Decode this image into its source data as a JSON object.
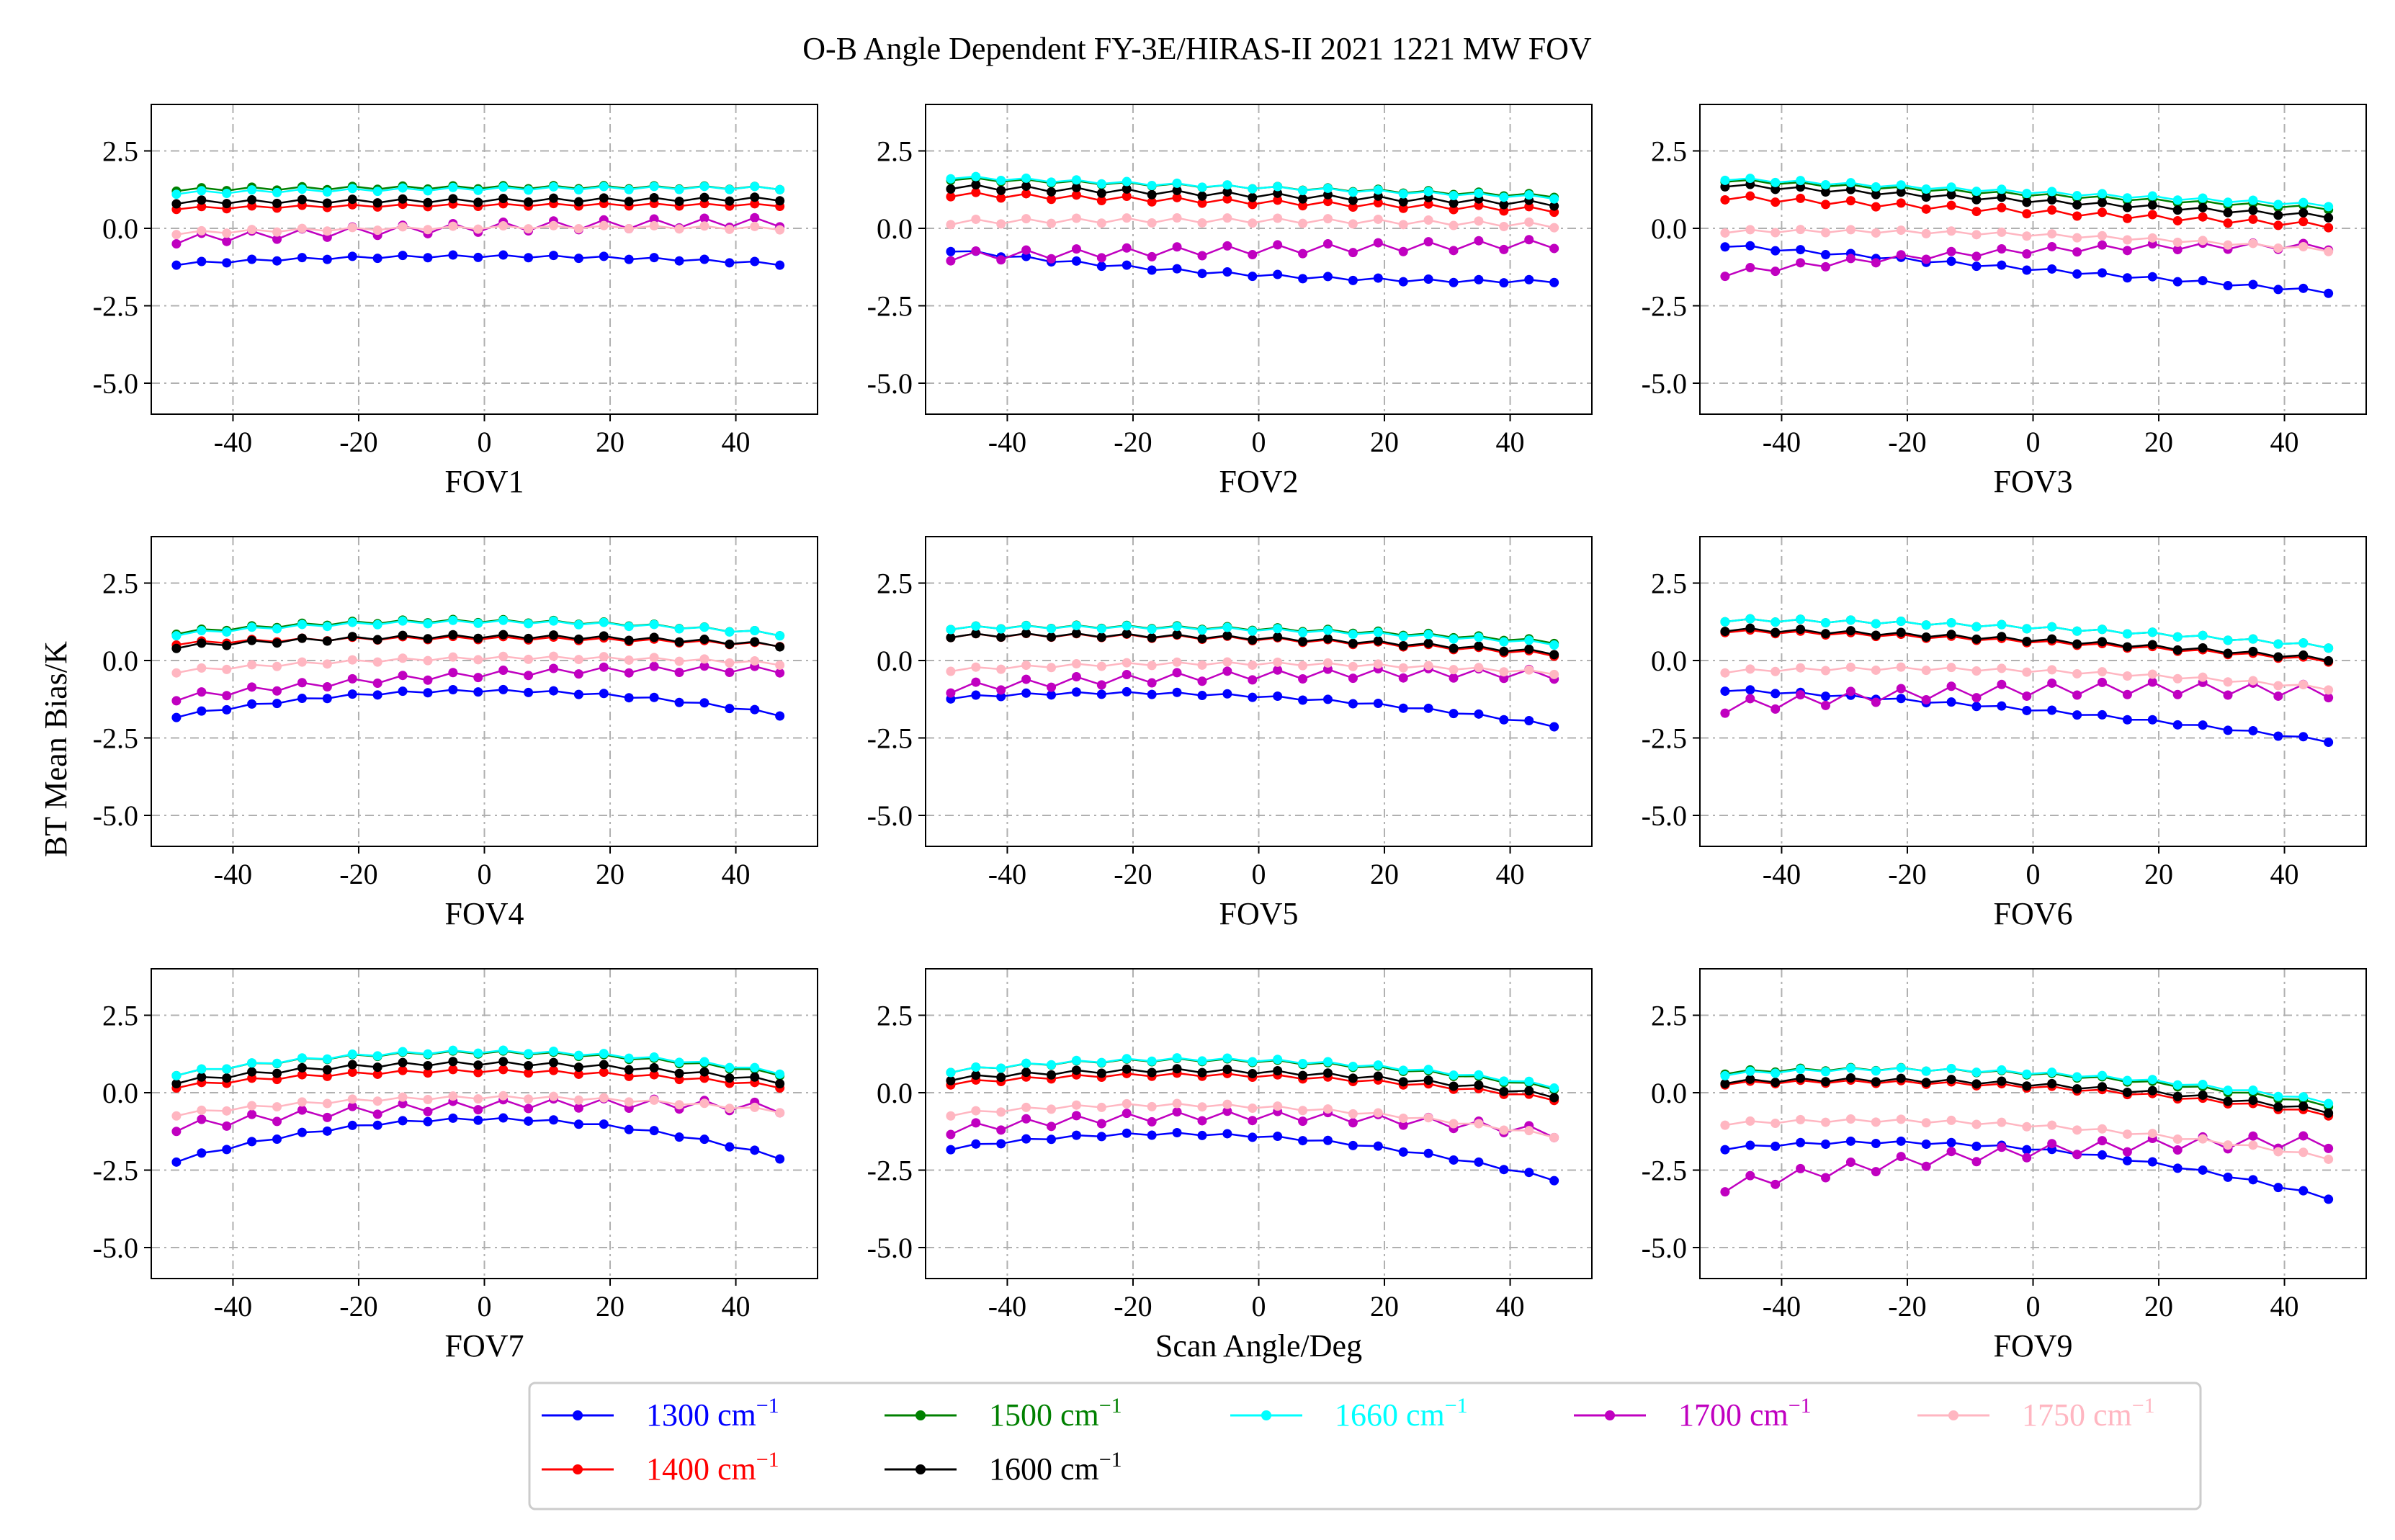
{
  "title": "O-B Angle Dependent FY-3E/HIRAS-II 2021 1221 MW FOV",
  "ylabel": "BT Mean Bias/K",
  "colors": {
    "1300": "#0000ff",
    "1400": "#ff0000",
    "1500": "#008000",
    "1600": "#000000",
    "1660": "#00ffff",
    "1700": "#c000c0",
    "1750": "#ffb6c1"
  },
  "legend": [
    {
      "key": "1300",
      "label": "1300 cm",
      "sup": "−1"
    },
    {
      "key": "1500",
      "label": "1500 cm",
      "sup": "−1"
    },
    {
      "key": "1660",
      "label": "1660 cm",
      "sup": "−1"
    },
    {
      "key": "1700",
      "label": "1700 cm",
      "sup": "−1"
    },
    {
      "key": "1750",
      "label": "1750 cm",
      "sup": "−1"
    },
    {
      "key": "1400",
      "label": "1400 cm",
      "sup": "−1"
    },
    {
      "key": "1600",
      "label": "1600 cm",
      "sup": "−1"
    }
  ],
  "chart_data": [
    {
      "type": "line",
      "xlabel": "FOV1",
      "xlim": [
        -53,
        53
      ],
      "ylim": [
        -6,
        4
      ],
      "xticks": [
        "-40",
        "-20",
        "0",
        "20",
        "40"
      ],
      "yticks": [
        "2.5",
        "0.0",
        "-2.5",
        "-5.0"
      ],
      "x": [
        -49,
        -45,
        -41,
        -37,
        -33,
        -29,
        -25,
        -21,
        -17,
        -13,
        -9,
        -5,
        -1,
        3,
        7,
        11,
        15,
        19,
        23,
        27,
        31,
        35,
        39,
        43,
        47
      ],
      "series": [
        {
          "name": "1300",
          "start": -1.15,
          "end": -1.15,
          "curve": 0.25,
          "zig": 0.04
        },
        {
          "name": "1400",
          "start": 0.65,
          "end": 0.75,
          "curve": 0.05,
          "zig": 0.04
        },
        {
          "name": "1500",
          "start": 1.25,
          "end": 1.3,
          "curve": 0.05,
          "zig": 0.05
        },
        {
          "name": "1600",
          "start": 0.85,
          "end": 0.95,
          "curve": 0.0,
          "zig": 0.06
        },
        {
          "name": "1660",
          "start": 1.15,
          "end": 1.3,
          "curve": 0.05,
          "zig": 0.05
        },
        {
          "name": "1700",
          "start": -0.35,
          "end": 0.2,
          "curve": 0.1,
          "zig": 0.15
        },
        {
          "name": "1750",
          "start": -0.15,
          "end": 0.0,
          "curve": 0.1,
          "zig": 0.05
        }
      ]
    },
    {
      "type": "line",
      "xlabel": "FOV2",
      "xlim": [
        -53,
        53
      ],
      "ylim": [
        -6,
        4
      ],
      "xticks": [
        "-40",
        "-20",
        "0",
        "20",
        "40"
      ],
      "yticks": [
        "2.5",
        "0.0",
        "-2.5",
        "-5.0"
      ],
      "x": [
        -49,
        -45,
        -41,
        -37,
        -33,
        -29,
        -25,
        -21,
        -17,
        -13,
        -9,
        -5,
        -1,
        3,
        7,
        11,
        15,
        19,
        23,
        27,
        31,
        35,
        39,
        43,
        47
      ],
      "series": [
        {
          "name": "1300",
          "start": -0.7,
          "end": -1.7,
          "curve": -0.3,
          "zig": 0.05
        },
        {
          "name": "1400",
          "start": 1.1,
          "end": 0.6,
          "curve": 0.0,
          "zig": 0.08
        },
        {
          "name": "1500",
          "start": 1.6,
          "end": 1.05,
          "curve": 0.0,
          "zig": 0.05
        },
        {
          "name": "1600",
          "start": 1.35,
          "end": 0.8,
          "curve": 0.0,
          "zig": 0.08
        },
        {
          "name": "1660",
          "start": 1.65,
          "end": 1.0,
          "curve": 0.0,
          "zig": 0.05
        },
        {
          "name": "1700",
          "start": -0.9,
          "end": -0.5,
          "curve": 0.0,
          "zig": 0.15
        },
        {
          "name": "1750",
          "start": 0.2,
          "end": 0.1,
          "curve": 0.1,
          "zig": 0.08
        }
      ]
    },
    {
      "type": "line",
      "xlabel": "FOV3",
      "xlim": [
        -53,
        53
      ],
      "ylim": [
        -6,
        4
      ],
      "xticks": [
        "-40",
        "-20",
        "0",
        "20",
        "40"
      ],
      "yticks": [
        "2.5",
        "0.0",
        "-2.5",
        "-5.0"
      ],
      "x": [
        -49,
        -45,
        -41,
        -37,
        -33,
        -29,
        -25,
        -21,
        -17,
        -13,
        -9,
        -5,
        -1,
        3,
        7,
        11,
        15,
        19,
        23,
        27,
        31,
        35,
        39,
        43,
        47
      ],
      "series": [
        {
          "name": "1300",
          "start": -0.55,
          "end": -2.05,
          "curve": 0.0,
          "zig": 0.05
        },
        {
          "name": "1400",
          "start": 1.0,
          "end": 0.1,
          "curve": 0.0,
          "zig": 0.08
        },
        {
          "name": "1500",
          "start": 1.55,
          "end": 0.65,
          "curve": 0.0,
          "zig": 0.05
        },
        {
          "name": "1600",
          "start": 1.4,
          "end": 0.4,
          "curve": 0.0,
          "zig": 0.06
        },
        {
          "name": "1660",
          "start": 1.6,
          "end": 0.75,
          "curve": 0.0,
          "zig": 0.05
        },
        {
          "name": "1700",
          "start": -1.45,
          "end": -0.6,
          "curve": 0.3,
          "zig": 0.1
        },
        {
          "name": "1750",
          "start": -0.1,
          "end": -0.7,
          "curve": 0.2,
          "zig": 0.05
        }
      ]
    },
    {
      "type": "line",
      "xlabel": "FOV4",
      "xlim": [
        -53,
        53
      ],
      "ylim": [
        -6,
        4
      ],
      "xticks": [
        "-40",
        "-20",
        "0",
        "20",
        "40"
      ],
      "yticks": [
        "2.5",
        "0.0",
        "-2.5",
        "-5.0"
      ],
      "x": [
        -49,
        -45,
        -41,
        -37,
        -33,
        -29,
        -25,
        -21,
        -17,
        -13,
        -9,
        -5,
        -1,
        3,
        7,
        11,
        15,
        19,
        23,
        27,
        31,
        35,
        39,
        43,
        47
      ],
      "series": [
        {
          "name": "1300",
          "start": -1.8,
          "end": -1.75,
          "curve": 0.8,
          "zig": 0.04
        },
        {
          "name": "1400",
          "start": 0.55,
          "end": 0.5,
          "curve": 0.2,
          "zig": 0.05
        },
        {
          "name": "1500",
          "start": 0.9,
          "end": 0.85,
          "curve": 0.4,
          "zig": 0.05
        },
        {
          "name": "1600",
          "start": 0.45,
          "end": 0.5,
          "curve": 0.3,
          "zig": 0.06
        },
        {
          "name": "1660",
          "start": 0.85,
          "end": 0.85,
          "curve": 0.4,
          "zig": 0.05
        },
        {
          "name": "1700",
          "start": -1.2,
          "end": -0.3,
          "curve": 0.3,
          "zig": 0.1
        },
        {
          "name": "1750",
          "start": -0.35,
          "end": -0.1,
          "curve": 0.3,
          "zig": 0.05
        }
      ]
    },
    {
      "type": "line",
      "xlabel": "FOV5",
      "xlim": [
        -53,
        53
      ],
      "ylim": [
        -6,
        4
      ],
      "xticks": [
        "-40",
        "-20",
        "0",
        "20",
        "40"
      ],
      "yticks": [
        "2.5",
        "0.0",
        "-2.5",
        "-5.0"
      ],
      "x": [
        -49,
        -45,
        -41,
        -37,
        -33,
        -29,
        -25,
        -21,
        -17,
        -13,
        -9,
        -5,
        -1,
        3,
        7,
        11,
        15,
        19,
        23,
        27,
        31,
        35,
        39,
        43,
        47
      ],
      "series": [
        {
          "name": "1300",
          "start": -1.2,
          "end": -2.1,
          "curve": 0.5,
          "zig": 0.04
        },
        {
          "name": "1400",
          "start": 0.8,
          "end": 0.2,
          "curve": 0.2,
          "zig": 0.06
        },
        {
          "name": "1500",
          "start": 1.05,
          "end": 0.6,
          "curve": 0.2,
          "zig": 0.05
        },
        {
          "name": "1600",
          "start": 0.8,
          "end": 0.25,
          "curve": 0.2,
          "zig": 0.06
        },
        {
          "name": "1660",
          "start": 1.05,
          "end": 0.55,
          "curve": 0.2,
          "zig": 0.05
        },
        {
          "name": "1700",
          "start": -0.9,
          "end": -0.45,
          "curve": 0.2,
          "zig": 0.15
        },
        {
          "name": "1750",
          "start": -0.3,
          "end": -0.4,
          "curve": 0.25,
          "zig": 0.05
        }
      ]
    },
    {
      "type": "line",
      "xlabel": "FOV6",
      "xlim": [
        -53,
        53
      ],
      "ylim": [
        -6,
        4
      ],
      "xticks": [
        "-40",
        "-20",
        "0",
        "20",
        "40"
      ],
      "yticks": [
        "2.5",
        "0.0",
        "-2.5",
        "-5.0"
      ],
      "x": [
        -49,
        -45,
        -41,
        -37,
        -33,
        -29,
        -25,
        -21,
        -17,
        -13,
        -9,
        -5,
        -1,
        3,
        7,
        11,
        15,
        19,
        23,
        27,
        31,
        35,
        39,
        43,
        47
      ],
      "series": [
        {
          "name": "1300",
          "start": -0.95,
          "end": -2.6,
          "curve": 0.2,
          "zig": 0.04
        },
        {
          "name": "1400",
          "start": 0.95,
          "end": 0.0,
          "curve": 0.15,
          "zig": 0.05
        },
        {
          "name": "1500",
          "start": 1.3,
          "end": 0.45,
          "curve": 0.2,
          "zig": 0.05
        },
        {
          "name": "1600",
          "start": 1.0,
          "end": 0.05,
          "curve": 0.15,
          "zig": 0.06
        },
        {
          "name": "1660",
          "start": 1.3,
          "end": 0.45,
          "curve": 0.2,
          "zig": 0.05
        },
        {
          "name": "1700",
          "start": -1.5,
          "end": -1.0,
          "curve": 0.3,
          "zig": 0.2
        },
        {
          "name": "1750",
          "start": -0.35,
          "end": -0.9,
          "curve": 0.3,
          "zig": 0.05
        }
      ]
    },
    {
      "type": "line",
      "xlabel": "FOV7",
      "xlim": [
        -53,
        53
      ],
      "ylim": [
        -6,
        4
      ],
      "xticks": [
        "-40",
        "-20",
        "0",
        "20",
        "40"
      ],
      "yticks": [
        "2.5",
        "0.0",
        "-2.5",
        "-5.0"
      ],
      "x": [
        -49,
        -45,
        -41,
        -37,
        -33,
        -29,
        -25,
        -21,
        -17,
        -13,
        -9,
        -5,
        -1,
        3,
        7,
        11,
        15,
        19,
        23,
        27,
        31,
        35,
        39,
        43,
        47
      ],
      "series": [
        {
          "name": "1300",
          "start": -2.2,
          "end": -2.1,
          "curve": 1.3,
          "zig": 0.04
        },
        {
          "name": "1400",
          "start": 0.2,
          "end": 0.2,
          "curve": 0.5,
          "zig": 0.05
        },
        {
          "name": "1500",
          "start": 0.6,
          "end": 0.6,
          "curve": 0.7,
          "zig": 0.05
        },
        {
          "name": "1600",
          "start": 0.35,
          "end": 0.35,
          "curve": 0.6,
          "zig": 0.06
        },
        {
          "name": "1660",
          "start": 0.6,
          "end": 0.65,
          "curve": 0.7,
          "zig": 0.05
        },
        {
          "name": "1700",
          "start": -1.1,
          "end": -0.5,
          "curve": 0.4,
          "zig": 0.15
        },
        {
          "name": "1750",
          "start": -0.7,
          "end": -0.6,
          "curve": 0.5,
          "zig": 0.05
        }
      ]
    },
    {
      "type": "line",
      "xlabel": "Scan Angle/Deg",
      "xlim": [
        -53,
        53
      ],
      "ylim": [
        -6,
        4
      ],
      "xticks": [
        "-40",
        "-20",
        "0",
        "20",
        "40"
      ],
      "yticks": [
        "2.5",
        "0.0",
        "-2.5",
        "-5.0"
      ],
      "x": [
        -49,
        -45,
        -41,
        -37,
        -33,
        -29,
        -25,
        -21,
        -17,
        -13,
        -9,
        -5,
        -1,
        3,
        7,
        11,
        15,
        19,
        23,
        27,
        31,
        35,
        39,
        43,
        47
      ],
      "series": [
        {
          "name": "1300",
          "start": -1.8,
          "end": -2.8,
          "curve": 0.9,
          "zig": 0.04
        },
        {
          "name": "1400",
          "start": 0.3,
          "end": -0.2,
          "curve": 0.5,
          "zig": 0.05
        },
        {
          "name": "1500",
          "start": 0.7,
          "end": 0.15,
          "curve": 0.6,
          "zig": 0.05
        },
        {
          "name": "1600",
          "start": 0.45,
          "end": -0.1,
          "curve": 0.5,
          "zig": 0.06
        },
        {
          "name": "1660",
          "start": 0.7,
          "end": 0.2,
          "curve": 0.6,
          "zig": 0.05
        },
        {
          "name": "1700",
          "start": -1.2,
          "end": -1.3,
          "curve": 0.5,
          "zig": 0.15
        },
        {
          "name": "1750",
          "start": -0.7,
          "end": -1.4,
          "curve": 0.6,
          "zig": 0.05
        }
      ]
    },
    {
      "type": "line",
      "xlabel": "FOV9",
      "xlim": [
        -53,
        53
      ],
      "ylim": [
        -6,
        4
      ],
      "xticks": [
        "-40",
        "-20",
        "0",
        "20",
        "40"
      ],
      "yticks": [
        "2.5",
        "0.0",
        "-2.5",
        "-5.0"
      ],
      "x": [
        -49,
        -45,
        -41,
        -37,
        -33,
        -29,
        -25,
        -21,
        -17,
        -13,
        -9,
        -5,
        -1,
        3,
        7,
        11,
        15,
        19,
        23,
        27,
        31,
        35,
        39,
        43,
        47
      ],
      "series": [
        {
          "name": "1300",
          "start": -1.8,
          "end": -3.4,
          "curve": 0.8,
          "zig": 0.04
        },
        {
          "name": "1400",
          "start": 0.3,
          "end": -0.7,
          "curve": 0.4,
          "zig": 0.05
        },
        {
          "name": "1500",
          "start": 0.65,
          "end": -0.4,
          "curve": 0.5,
          "zig": 0.05
        },
        {
          "name": "1600",
          "start": 0.35,
          "end": -0.6,
          "curve": 0.4,
          "zig": 0.06
        },
        {
          "name": "1660",
          "start": 0.6,
          "end": -0.3,
          "curve": 0.5,
          "zig": 0.05
        },
        {
          "name": "1700",
          "start": -3.0,
          "end": -1.6,
          "curve": 0.4,
          "zig": 0.2
        },
        {
          "name": "1750",
          "start": -1.0,
          "end": -2.1,
          "curve": 0.5,
          "zig": 0.05
        }
      ]
    }
  ]
}
